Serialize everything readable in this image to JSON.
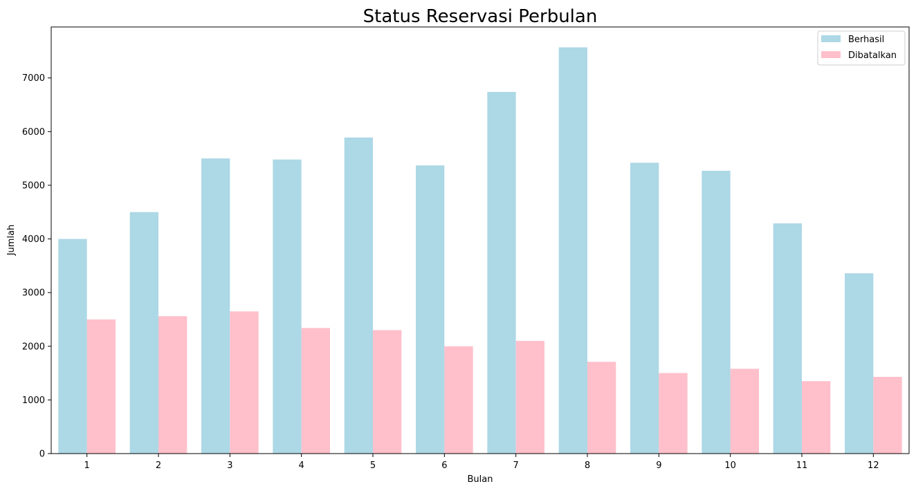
{
  "chart_data": {
    "type": "bar",
    "title": "Status Reservasi Perbulan",
    "xlabel": "Bulan",
    "ylabel": "Jumlah",
    "categories": [
      "1",
      "2",
      "3",
      "4",
      "5",
      "6",
      "7",
      "8",
      "9",
      "10",
      "11",
      "12"
    ],
    "series": [
      {
        "name": "Berhasil",
        "color": "#add8e6",
        "values": [
          4000,
          4500,
          5500,
          5480,
          5890,
          5370,
          6740,
          7570,
          5420,
          5270,
          4290,
          3360
        ]
      },
      {
        "name": "Dibatalkan",
        "color": "#ffc0cb",
        "values": [
          2500,
          2560,
          2650,
          2340,
          2300,
          2000,
          2100,
          1710,
          1500,
          1580,
          1350,
          1430
        ]
      }
    ],
    "ylim": [
      0,
      7950
    ],
    "yticks": [
      0,
      1000,
      2000,
      3000,
      4000,
      5000,
      6000,
      7000
    ],
    "grid": false,
    "legend_position": "top-right"
  }
}
